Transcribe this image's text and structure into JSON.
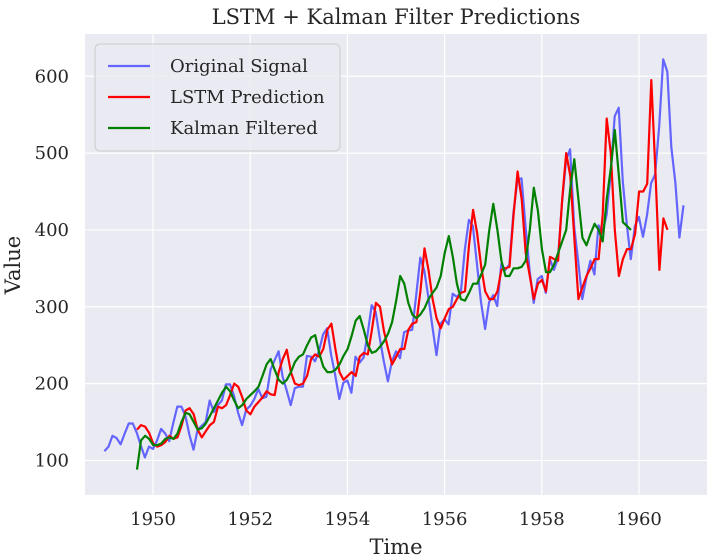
{
  "chart_data": {
    "type": "line",
    "title": "LSTM + Kalman Filter Predictions",
    "xlabel": "Time",
    "ylabel": "Value",
    "xlim": [
      1948.6,
      1961.4
    ],
    "ylim": [
      55,
      655
    ],
    "xticks": [
      1950,
      1952,
      1954,
      1956,
      1958,
      1960
    ],
    "yticks": [
      100,
      200,
      300,
      400,
      500,
      600
    ],
    "grid": true,
    "legend_position": "top-left",
    "series": [
      {
        "name": "Original Signal",
        "color": "#6464ff",
        "x_start": 1949.0,
        "x_step": 0.08333,
        "values": [
          112,
          118,
          132,
          129,
          121,
          135,
          148,
          148,
          136,
          119,
          104,
          118,
          115,
          126,
          141,
          135,
          125,
          149,
          170,
          170,
          158,
          133,
          114,
          140,
          145,
          150,
          178,
          163,
          172,
          178,
          199,
          199,
          184,
          162,
          146,
          166,
          171,
          180,
          193,
          181,
          183,
          218,
          230,
          242,
          209,
          191,
          172,
          194,
          196,
          196,
          236,
          235,
          229,
          243,
          264,
          272,
          237,
          211,
          180,
          201,
          204,
          188,
          235,
          227,
          234,
          264,
          302,
          293,
          259,
          229,
          203,
          229,
          242,
          233,
          267,
          269,
          270,
          315,
          364,
          347,
          312,
          274,
          237,
          278,
          284,
          277,
          317,
          313,
          318,
          374,
          413,
          405,
          355,
          306,
          271,
          306,
          315,
          301,
          356,
          348,
          355,
          422,
          465,
          467,
          404,
          347,
          305,
          336,
          340,
          318,
          362,
          348,
          363,
          435,
          491,
          505,
          404,
          359,
          310,
          337,
          360,
          342,
          406,
          396,
          420,
          472,
          548,
          559,
          463,
          407,
          362,
          405,
          417,
          391,
          419,
          461,
          472,
          535,
          622,
          606,
          508,
          461,
          390,
          432
        ]
      },
      {
        "name": "LSTM Prediction",
        "color": "#ff0000",
        "x_start": 1949.67,
        "x_step": 0.08333,
        "values": [
          140,
          146,
          144,
          136,
          122,
          118,
          120,
          124,
          132,
          128,
          130,
          145,
          165,
          168,
          160,
          140,
          130,
          138,
          146,
          150,
          170,
          168,
          172,
          185,
          200,
          196,
          182,
          165,
          160,
          170,
          176,
          182,
          190,
          186,
          185,
          215,
          232,
          244,
          215,
          200,
          198,
          200,
          210,
          232,
          238,
          235,
          245,
          270,
          278,
          245,
          215,
          205,
          210,
          215,
          210,
          235,
          240,
          238,
          270,
          305,
          300,
          268,
          245,
          225,
          235,
          245,
          245,
          270,
          278,
          280,
          320,
          376,
          348,
          310,
          285,
          272,
          285,
          297,
          300,
          310,
          318,
          320,
          380,
          426,
          396,
          352,
          320,
          310,
          310,
          320,
          348,
          350,
          352,
          420,
          476,
          440,
          370,
          340,
          310,
          330,
          335,
          320,
          365,
          362,
          360,
          440,
          500,
          470,
          390,
          310,
          325,
          340,
          350,
          362,
          362,
          420,
          545,
          500,
          400,
          340,
          362,
          375,
          375,
          395,
          450,
          450,
          460,
          595,
          480,
          348,
          415,
          400
        ]
      },
      {
        "name": "Kalman Filtered",
        "color": "#008000",
        "x_start": 1949.67,
        "x_step": 0.08333,
        "values": [
          88,
          126,
          132,
          128,
          120,
          120,
          122,
          128,
          130,
          128,
          135,
          150,
          162,
          160,
          150,
          140,
          142,
          148,
          158,
          168,
          178,
          188,
          196,
          190,
          178,
          168,
          172,
          180,
          185,
          190,
          196,
          210,
          225,
          232,
          218,
          205,
          200,
          205,
          215,
          228,
          235,
          238,
          250,
          260,
          263,
          240,
          222,
          215,
          215,
          218,
          225,
          236,
          245,
          262,
          282,
          288,
          270,
          250,
          240,
          242,
          248,
          255,
          265,
          280,
          308,
          340,
          330,
          305,
          290,
          285,
          290,
          298,
          310,
          318,
          325,
          340,
          370,
          392,
          365,
          330,
          310,
          308,
          318,
          330,
          330,
          342,
          355,
          400,
          434,
          400,
          360,
          340,
          340,
          350,
          350,
          352,
          360,
          400,
          455,
          425,
          375,
          345,
          345,
          355,
          370,
          385,
          400,
          455,
          492,
          440,
          390,
          380,
          395,
          408,
          400,
          385,
          440,
          480,
          530,
          470,
          410,
          405,
          400
        ]
      }
    ]
  }
}
